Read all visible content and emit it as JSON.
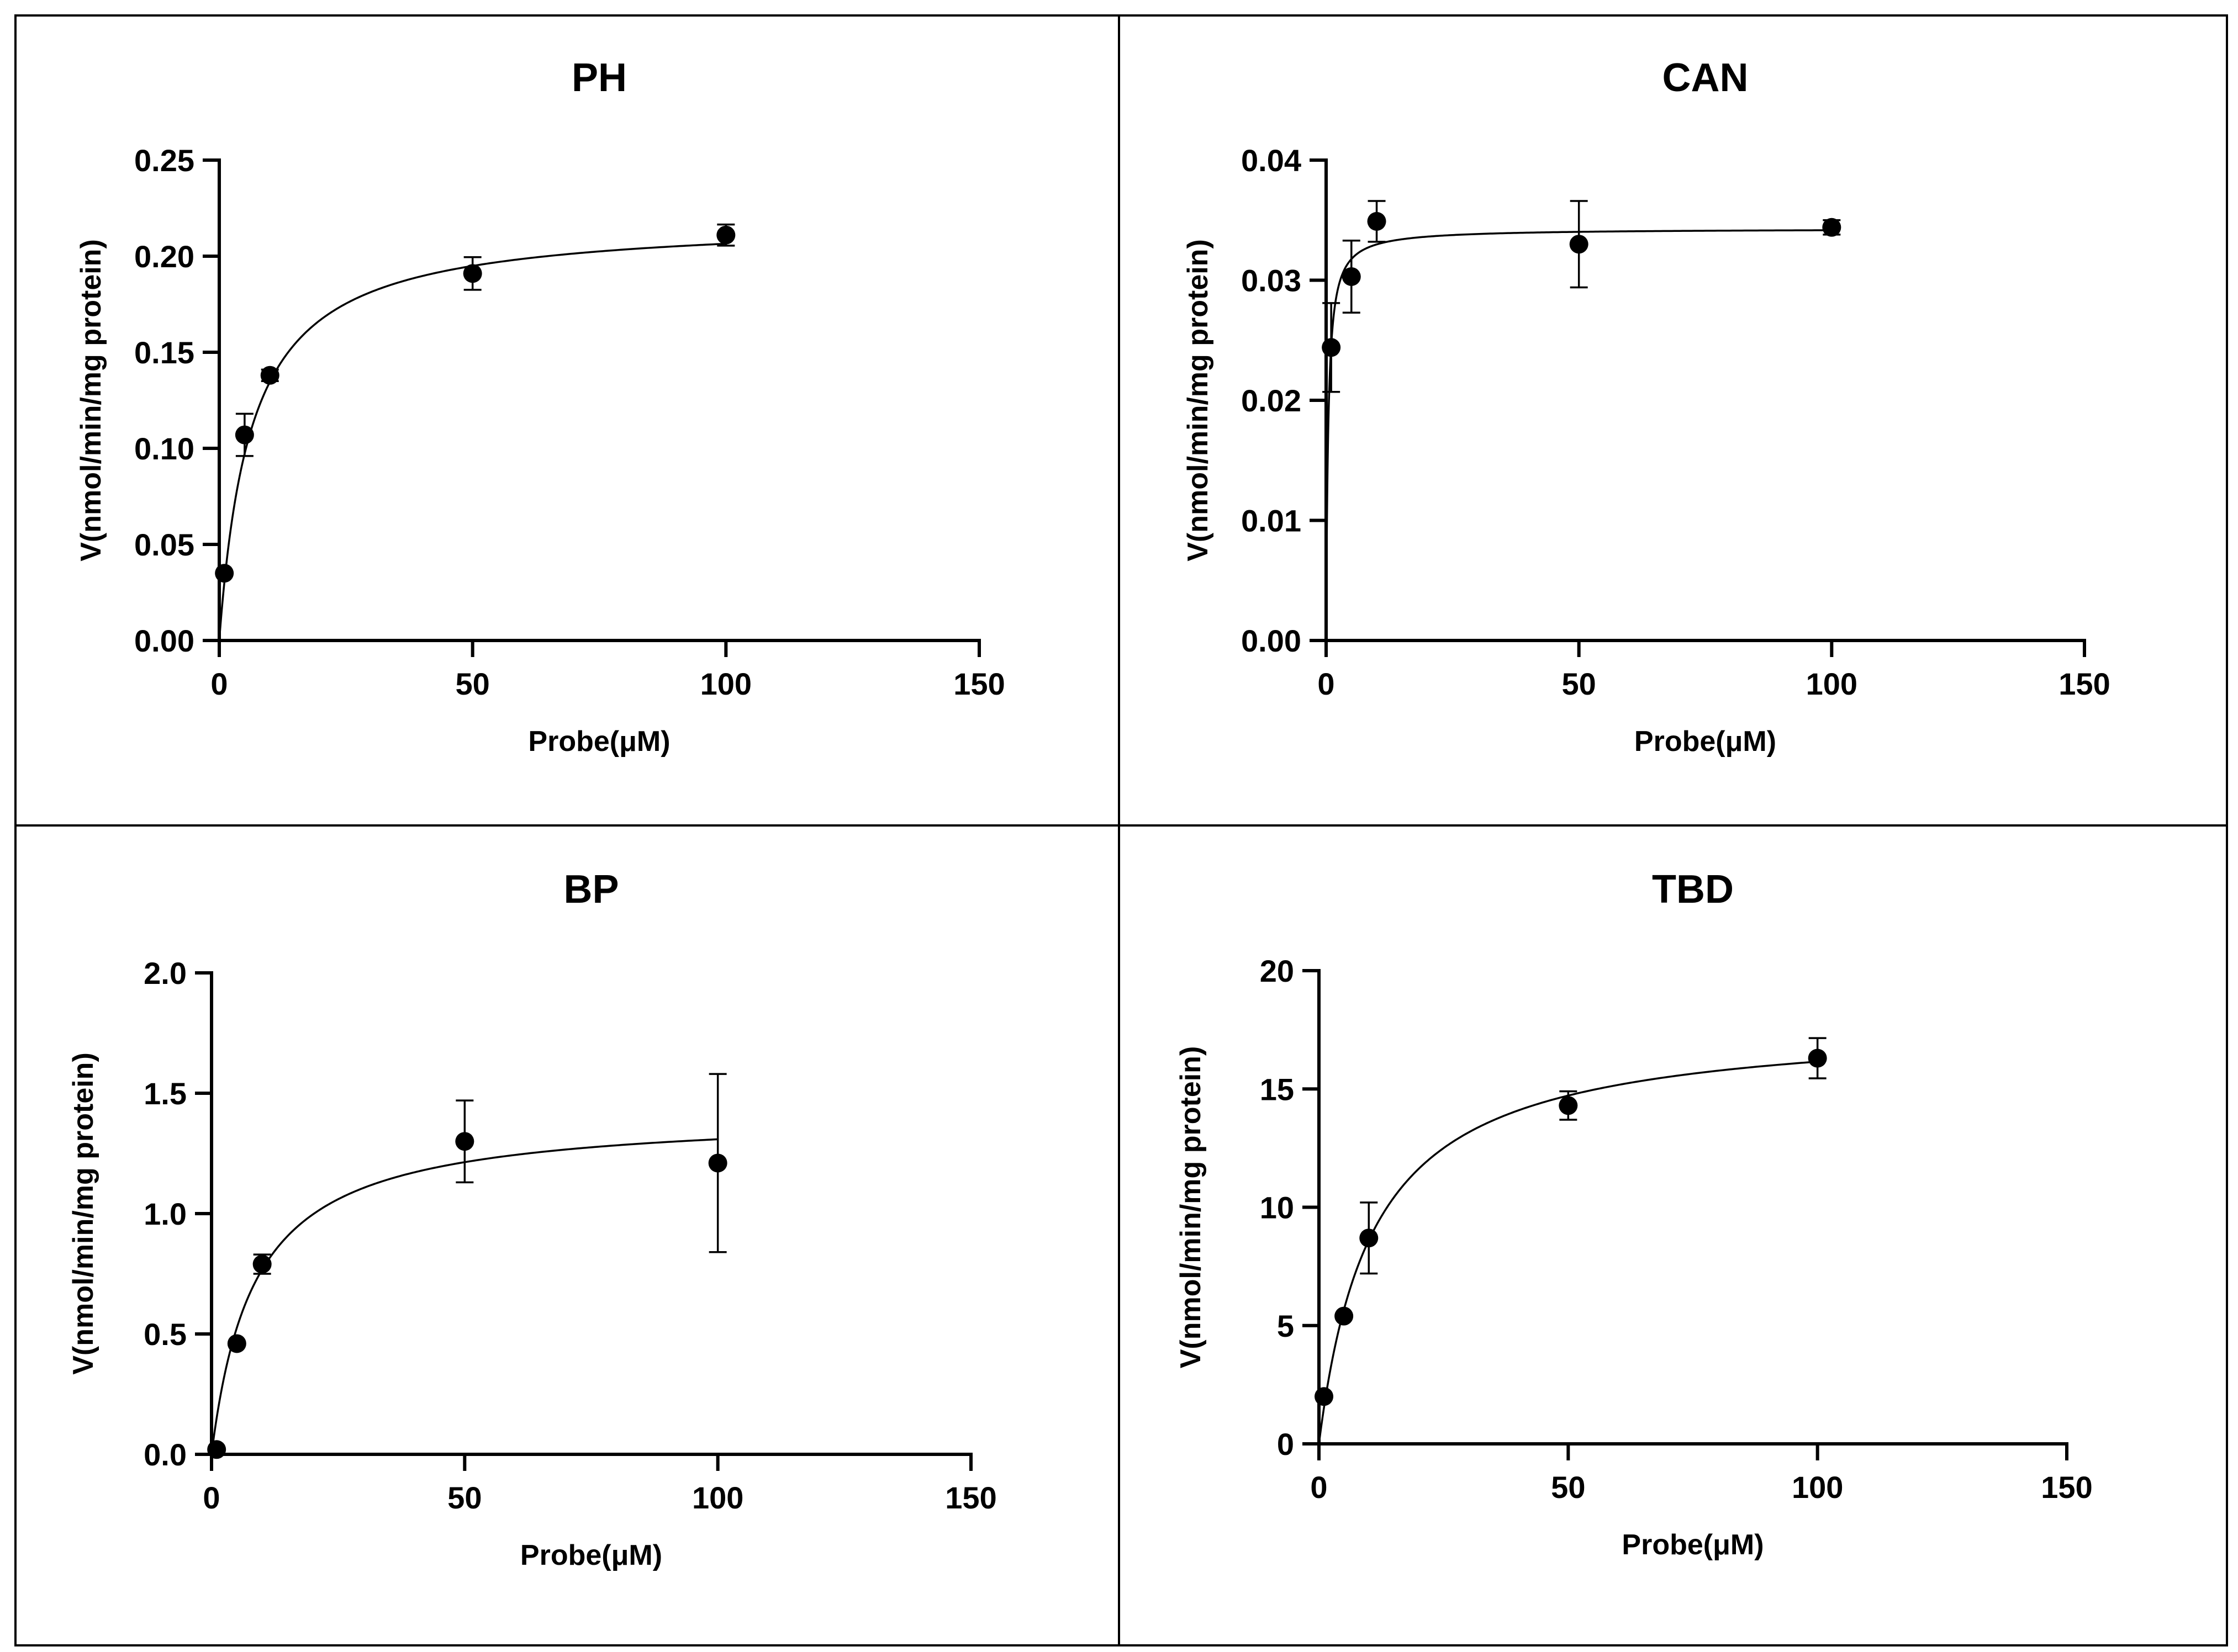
{
  "chart_data": [
    {
      "type": "scatter",
      "title": "PH",
      "xlabel": "Probe(μM)",
      "ylabel": "V(nmol/min/mg protein)",
      "xlim": [
        0,
        150
      ],
      "ylim": [
        0,
        0.25
      ],
      "xticks": [
        "0",
        "50",
        "100",
        "150"
      ],
      "yticks": [
        "0.00",
        "0.05",
        "0.10",
        "0.15",
        "0.20",
        "0.25"
      ],
      "points": [
        {
          "x": 1,
          "y": 0.035,
          "err": 0
        },
        {
          "x": 5,
          "y": 0.107,
          "err": 0.011
        },
        {
          "x": 10,
          "y": 0.138,
          "err": 0.003
        },
        {
          "x": 50,
          "y": 0.191,
          "err": 0.0085
        },
        {
          "x": 100,
          "y": 0.211,
          "err": 0.0055
        }
      ],
      "fit": {
        "model": "michaelis-menten",
        "vmax": 0.2195,
        "km": 6.3,
        "x_range": [
          0,
          100
        ]
      }
    },
    {
      "type": "scatter",
      "title": "CAN",
      "xlabel": "Probe(μM)",
      "ylabel": "V(nmol/min/mg protein)",
      "xlim": [
        0,
        150
      ],
      "ylim": [
        0,
        0.04
      ],
      "xticks": [
        "0",
        "50",
        "100",
        "150"
      ],
      "yticks": [
        "0.00",
        "0.01",
        "0.02",
        "0.03",
        "0.04"
      ],
      "points": [
        {
          "x": 1,
          "y": 0.0244,
          "err": 0.0037
        },
        {
          "x": 5,
          "y": 0.0303,
          "err": 0.003
        },
        {
          "x": 10,
          "y": 0.0349,
          "err": 0.0017
        },
        {
          "x": 50,
          "y": 0.033,
          "err": 0.0036
        },
        {
          "x": 100,
          "y": 0.0344,
          "err": 0.0006
        }
      ],
      "fit": {
        "model": "michaelis-menten",
        "vmax": 0.0343,
        "km": 0.4,
        "x_range": [
          0,
          100
        ]
      }
    },
    {
      "type": "scatter",
      "title": "BP",
      "xlabel": "Probe(μM)",
      "ylabel": "V(nmol/min/mg protein)",
      "xlim": [
        0,
        150
      ],
      "ylim": [
        0,
        2.0
      ],
      "xticks": [
        "0",
        "50",
        "100",
        "150"
      ],
      "yticks": [
        "0.0",
        "0.5",
        "1.0",
        "1.5",
        "2.0"
      ],
      "points": [
        {
          "x": 1,
          "y": 0.02,
          "err": 0
        },
        {
          "x": 5,
          "y": 0.46,
          "err": 0
        },
        {
          "x": 10,
          "y": 0.79,
          "err": 0.04
        },
        {
          "x": 50,
          "y": 1.3,
          "err": 0.17
        },
        {
          "x": 100,
          "y": 1.21,
          "err": 0.37
        }
      ],
      "fit": {
        "model": "michaelis-menten",
        "vmax": 1.42,
        "km": 8.5,
        "x_range": [
          0,
          100
        ]
      }
    },
    {
      "type": "scatter",
      "title": "TBD",
      "xlabel": "Probe(μM)",
      "ylabel": "V(nmol/min/mg protein)",
      "xlim": [
        0,
        150
      ],
      "ylim": [
        0,
        20
      ],
      "xticks": [
        "0",
        "50",
        "100",
        "150"
      ],
      "yticks": [
        "0",
        "5",
        "10",
        "15",
        "20"
      ],
      "points": [
        {
          "x": 1,
          "y": 2.0,
          "err": 0
        },
        {
          "x": 5,
          "y": 5.4,
          "err": 0
        },
        {
          "x": 10,
          "y": 8.7,
          "err": 1.5
        },
        {
          "x": 50,
          "y": 14.3,
          "err": 0.6
        },
        {
          "x": 100,
          "y": 16.3,
          "err": 0.85
        }
      ],
      "fit": {
        "model": "michaelis-menten",
        "vmax": 17.9,
        "km": 10.8,
        "x_range": [
          0,
          100
        ]
      }
    }
  ]
}
